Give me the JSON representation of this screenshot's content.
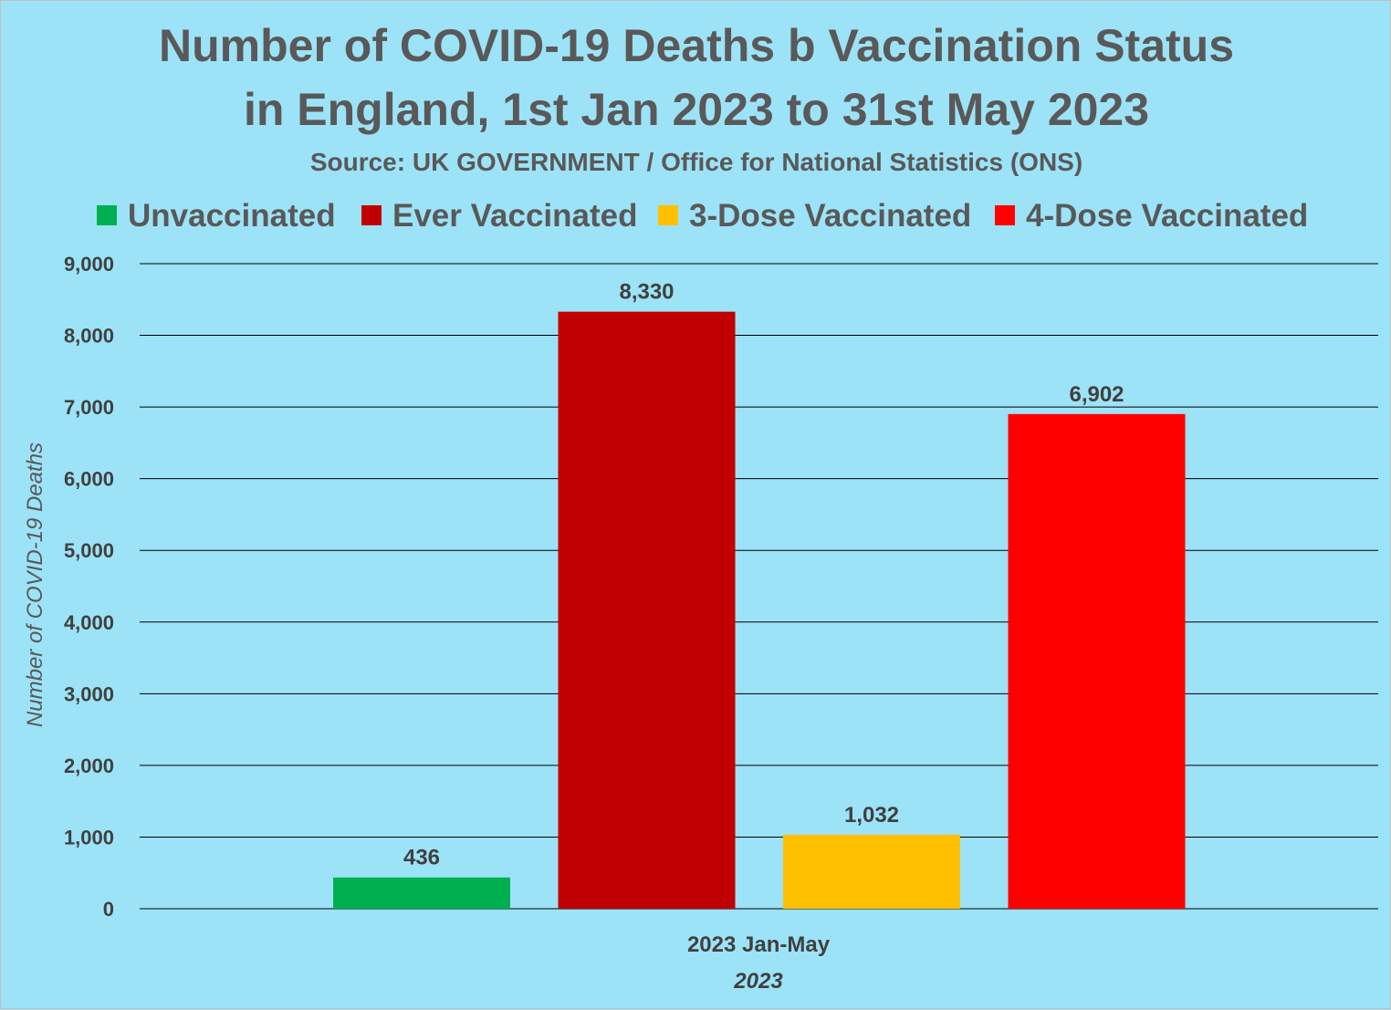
{
  "chart_data": {
    "type": "bar",
    "title_line1": "Number of COVID-19 Deaths b Vaccination Status",
    "title_line2": "in England, 1st Jan 2023 to 31st May 2023",
    "subtitle": "Source: UK GOVERNMENT / Office for National Statistics (ONS)",
    "ylabel": "Number of COVID-19 Deaths",
    "category_label": "2023 Jan-May",
    "xlabel": "2023",
    "ylim": [
      0,
      9000
    ],
    "y_ticks": [
      "0",
      "1,000",
      "2,000",
      "3,000",
      "4,000",
      "5,000",
      "6,000",
      "7,000",
      "8,000",
      "9,000"
    ],
    "grid": true,
    "legend_position": "top",
    "series": [
      {
        "name": "Unvaccinated",
        "value": 436,
        "label": "436",
        "color": "#00B050"
      },
      {
        "name": "Ever Vaccinated",
        "value": 8330,
        "label": "8,330",
        "color": "#C00000"
      },
      {
        "name": "3-Dose Vaccinated",
        "value": 1032,
        "label": "1,032",
        "color": "#FFC000"
      },
      {
        "name": "4-Dose Vaccinated",
        "value": 6902,
        "label": "6,902",
        "color": "#FF0000"
      }
    ]
  }
}
